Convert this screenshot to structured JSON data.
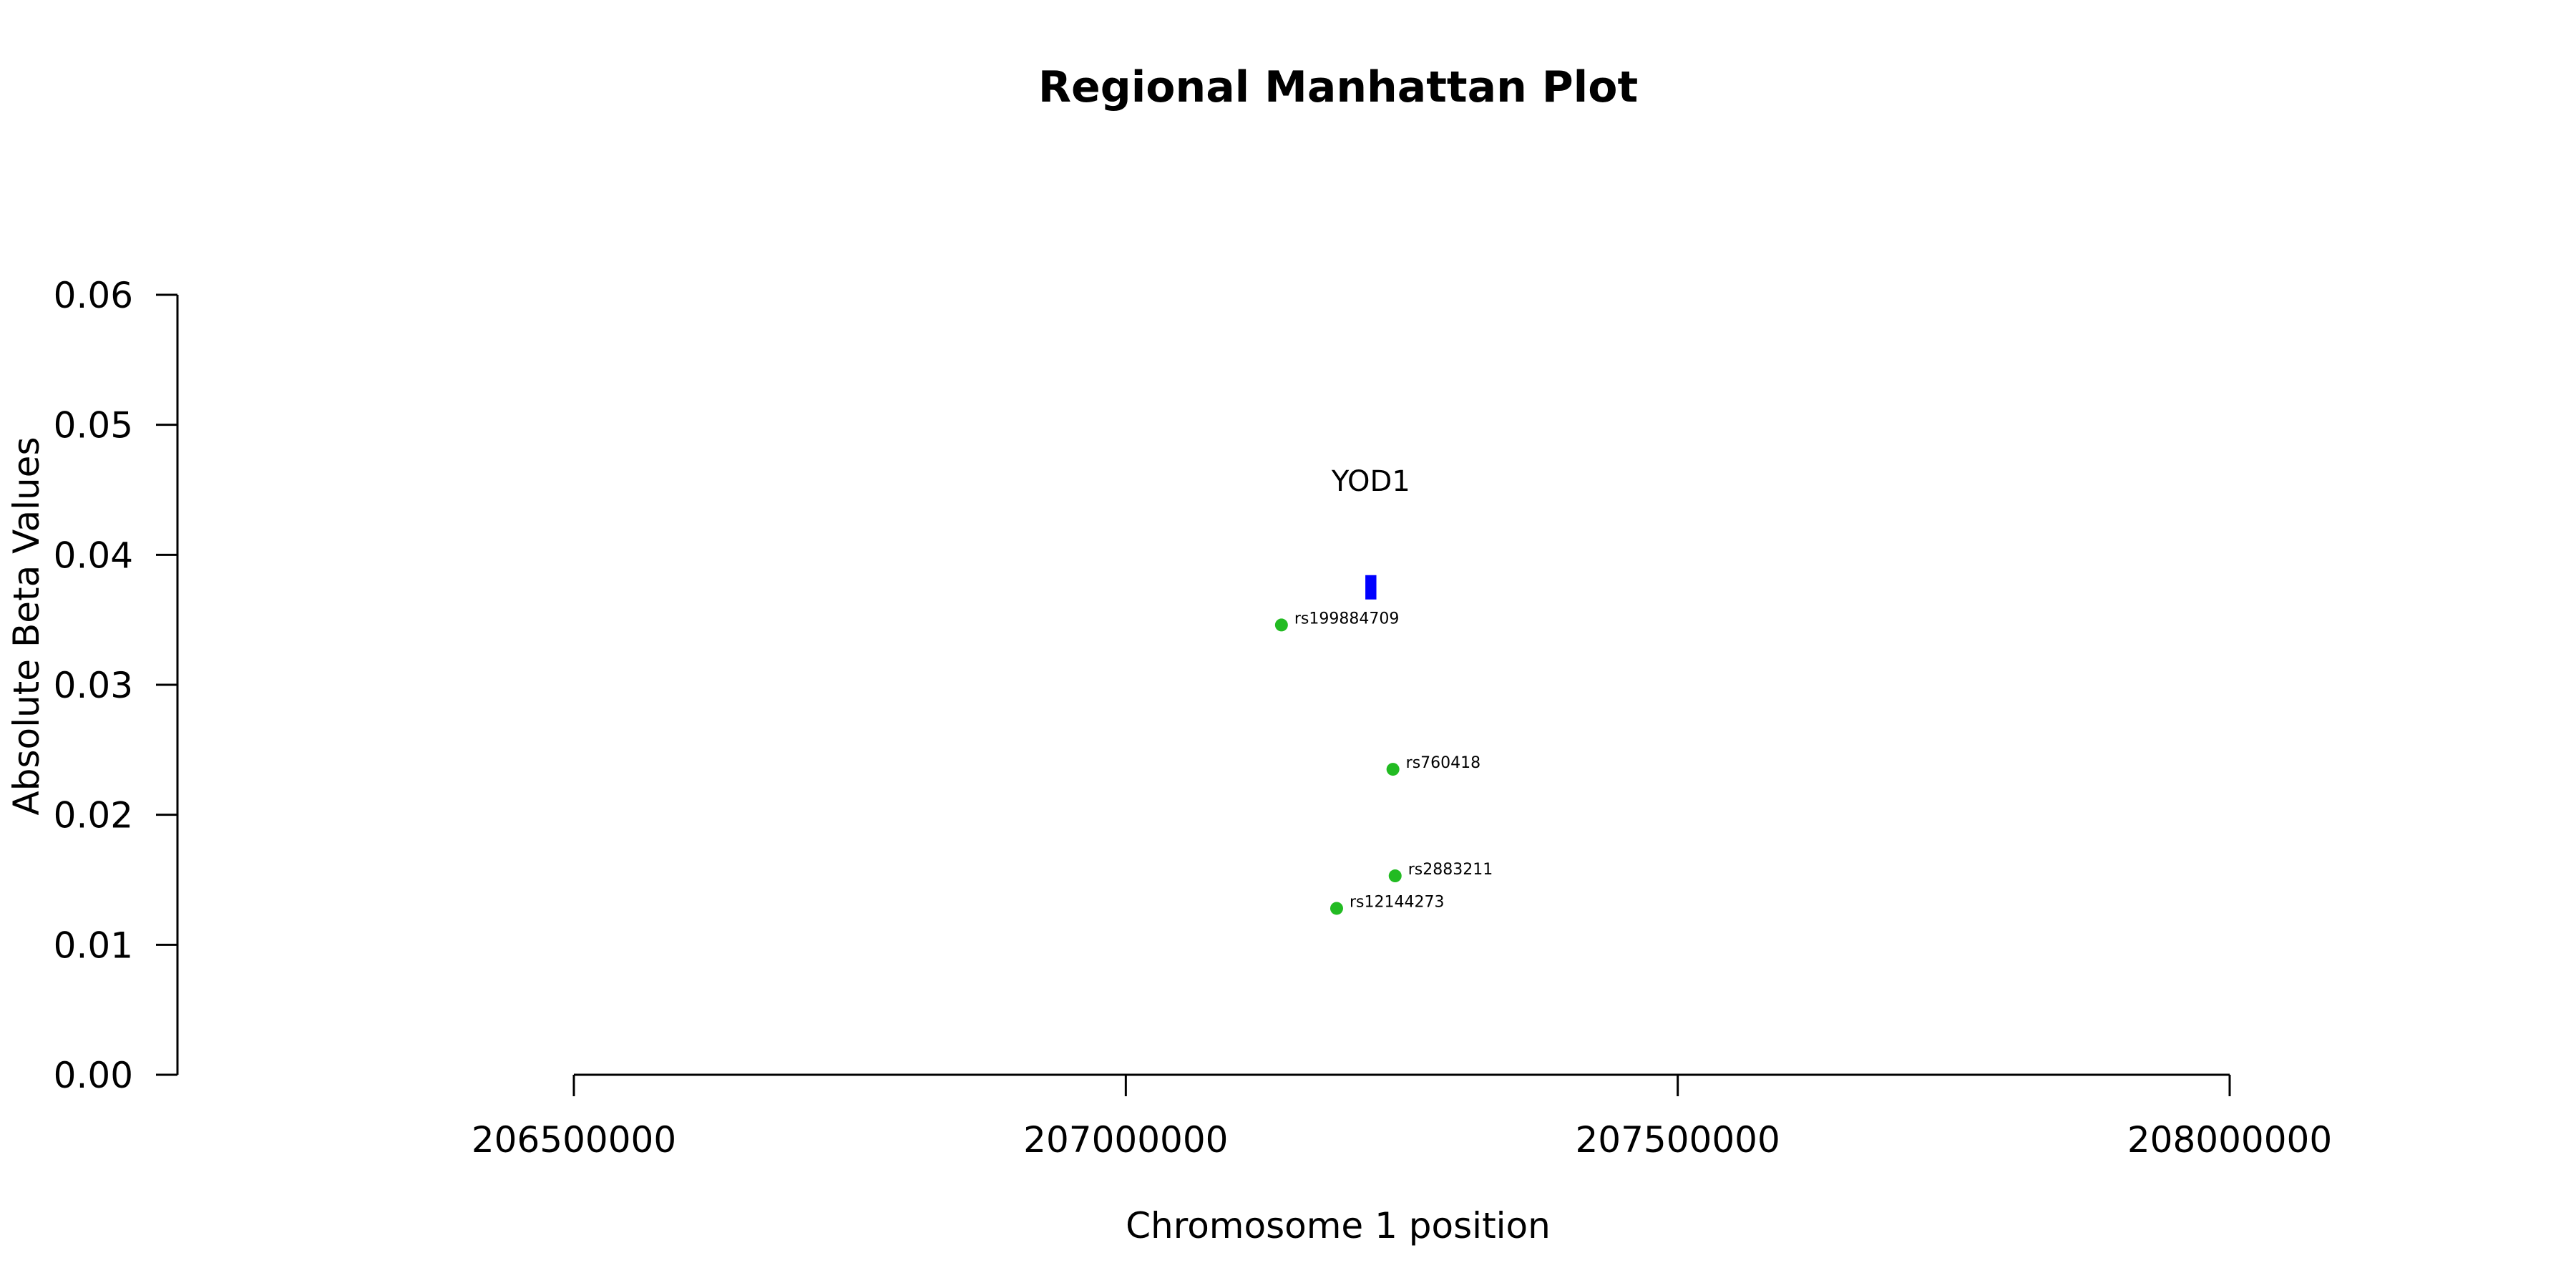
{
  "chart_data": {
    "type": "scatter",
    "title": "Regional Manhattan Plot",
    "xlabel": "Chromosome 1 position",
    "ylabel": "Absolute Beta Values",
    "xlim": [
      206500000,
      208000000
    ],
    "ylim": [
      0,
      0.06
    ],
    "x_ticks": [
      206500000,
      207000000,
      207500000,
      208000000
    ],
    "x_tick_labels": [
      "206500000",
      "207000000",
      "207500000",
      "208000000"
    ],
    "y_ticks": [
      0,
      0.01,
      0.02,
      0.03,
      0.04,
      0.05,
      0.06
    ],
    "y_tick_labels": [
      "0.00",
      "0.01",
      "0.02",
      "0.03",
      "0.04",
      "0.05",
      "0.06"
    ],
    "grid": false,
    "gene": {
      "name": "YOD1",
      "start": 207217000,
      "end": 207227000,
      "y": 0.0375,
      "color": "#0000ff"
    },
    "points_color": "#22bb22",
    "points": [
      {
        "label": "rs199884709",
        "x": 207141000,
        "y": 0.0346
      },
      {
        "label": "rs760418",
        "x": 207242000,
        "y": 0.0235
      },
      {
        "label": "rs2883211",
        "x": 207244000,
        "y": 0.0153
      },
      {
        "label": "rs12144273",
        "x": 207191000,
        "y": 0.0128
      }
    ]
  }
}
